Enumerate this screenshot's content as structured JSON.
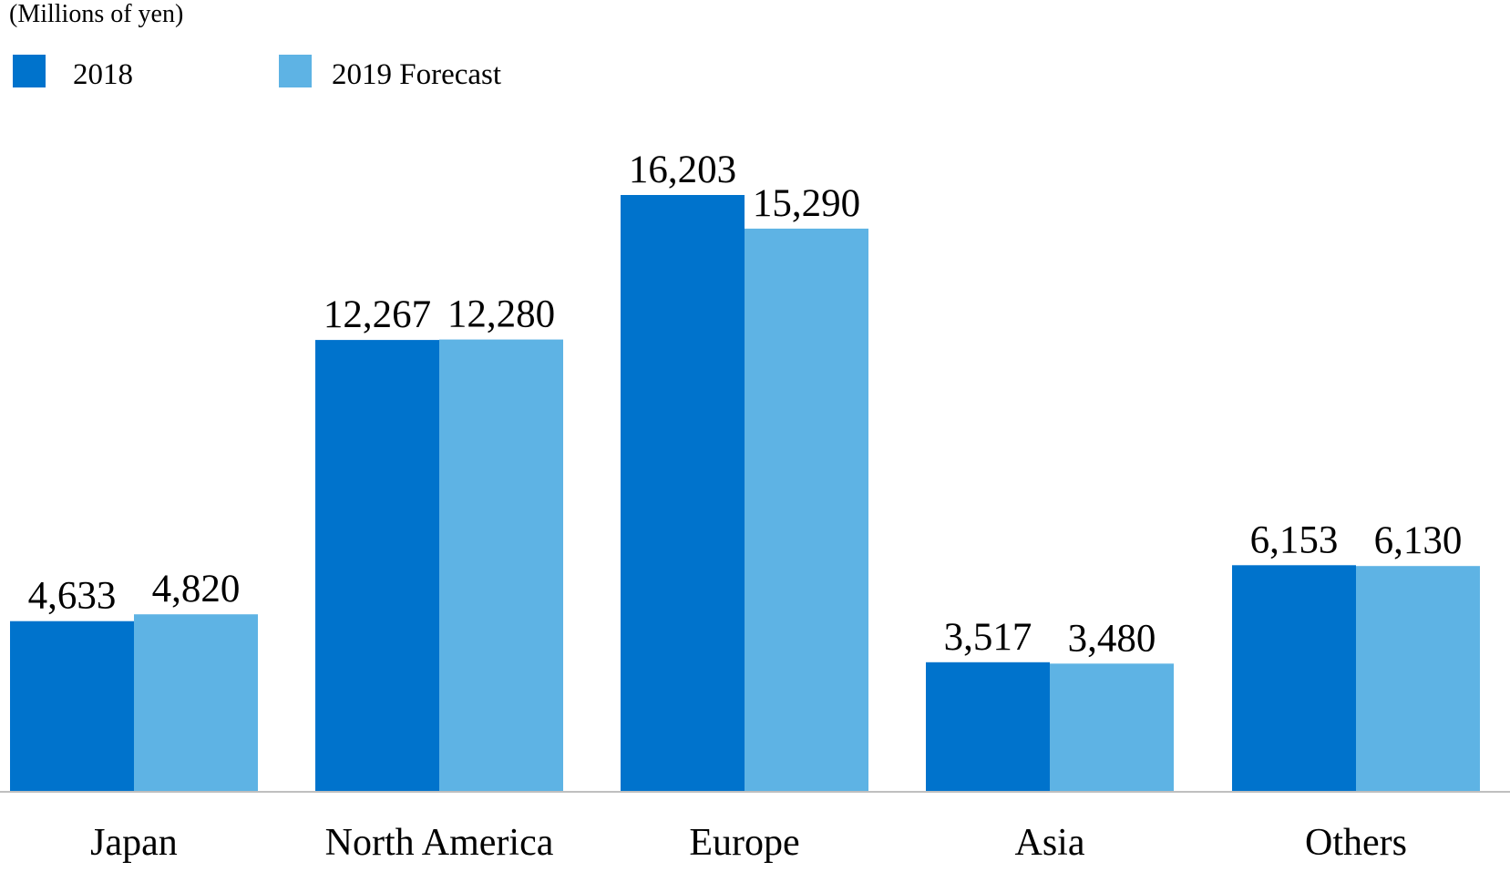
{
  "chart_data": {
    "type": "bar",
    "unit_label": "(Millions of yen)",
    "categories": [
      "Japan",
      "North America",
      "Europe",
      "Asia",
      "Others"
    ],
    "series": [
      {
        "name": "2018",
        "color": "#0073CC",
        "values": [
          4633,
          12267,
          16203,
          3517,
          6153
        ],
        "labels": [
          "4,633",
          "12,267",
          "16,203",
          "3,517",
          "6,153"
        ]
      },
      {
        "name": "2019 Forecast",
        "color": "#5EB3E4",
        "values": [
          4820,
          12280,
          15290,
          3480,
          6130
        ],
        "labels": [
          "4,820",
          "12,280",
          "15,290",
          "3,480",
          "6,130"
        ]
      }
    ],
    "ylim": [
      0,
      16203
    ],
    "grid": false,
    "legend_position": "top-left",
    "axis_color": "#BFBFBF"
  }
}
